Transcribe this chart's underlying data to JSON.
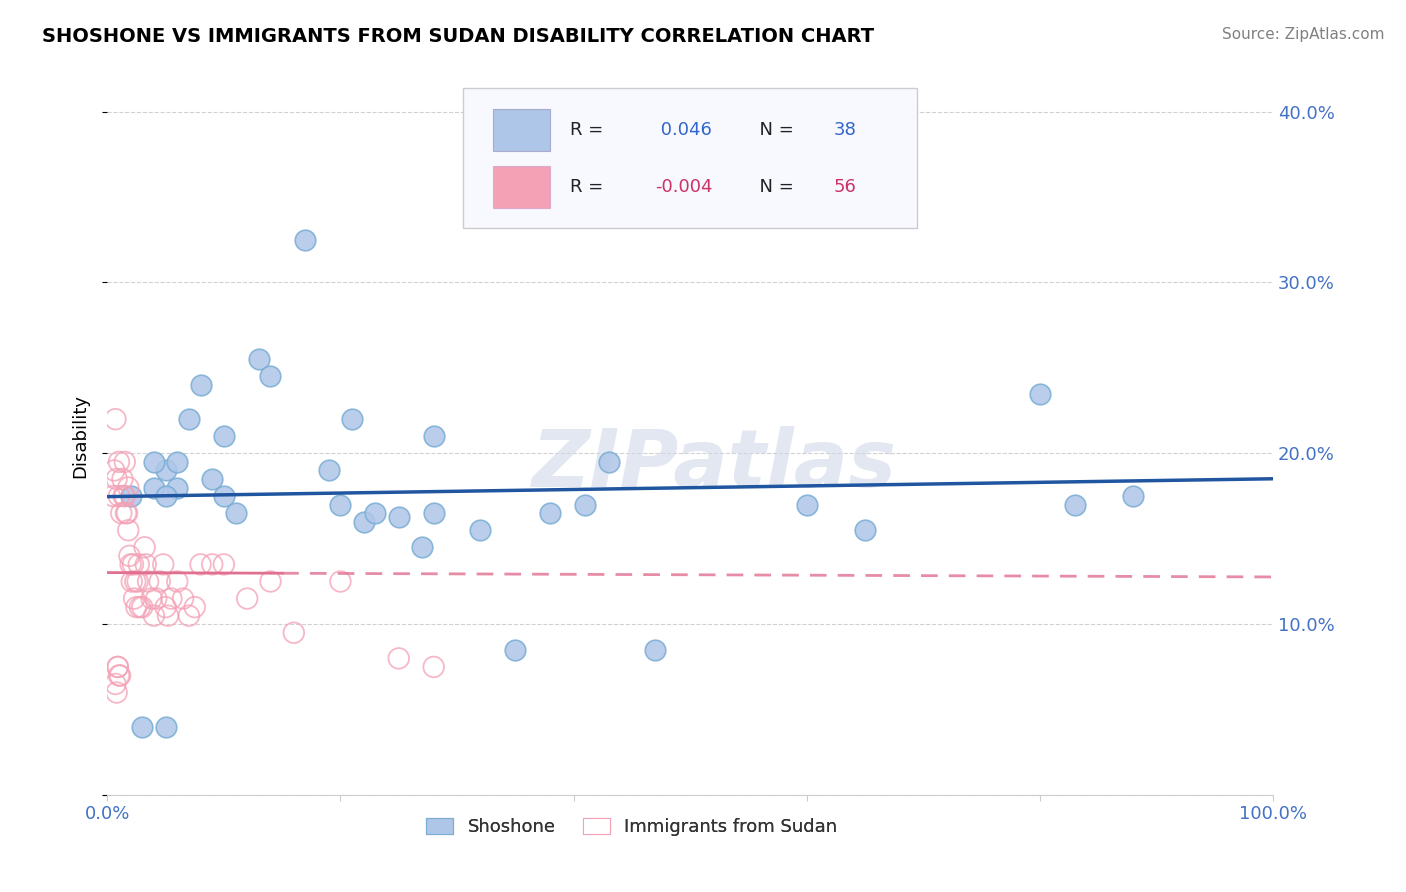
{
  "title": "SHOSHONE VS IMMIGRANTS FROM SUDAN DISABILITY CORRELATION CHART",
  "source": "Source: ZipAtlas.com",
  "ylabel": "Disability",
  "xlim": [
    0,
    1.0
  ],
  "ylim": [
    0,
    0.42
  ],
  "xticks": [
    0.0,
    0.2,
    0.4,
    0.6,
    0.8,
    1.0
  ],
  "xticklabels": [
    "0.0%",
    "",
    "",
    "",
    "",
    "100.0%"
  ],
  "yticks": [
    0.0,
    0.1,
    0.2,
    0.3,
    0.4
  ],
  "yticklabels": [
    "",
    "10.0%",
    "20.0%",
    "30.0%",
    "40.0%"
  ],
  "grid_color": "#cccccc",
  "background_color": "#ffffff",
  "watermark": "ZIPatlas",
  "blue_R": 0.046,
  "blue_N": 38,
  "pink_R": -0.004,
  "pink_N": 56,
  "blue_fill_color": "#aec6e8",
  "blue_edge_color": "#7aadd4",
  "pink_edge_color": "#f4a0b5",
  "blue_line_color": "#2055a0",
  "pink_line_color": "#e07090",
  "blue_legend": "Shoshone",
  "pink_legend": "Immigrants from Sudan",
  "blue_x": [
    0.02,
    0.04,
    0.05,
    0.06,
    0.07,
    0.08,
    0.09,
    0.1,
    0.11,
    0.13,
    0.14,
    0.17,
    0.19,
    0.2,
    0.21,
    0.22,
    0.23,
    0.25,
    0.27,
    0.28,
    0.32,
    0.35,
    0.38,
    0.41,
    0.43,
    0.47,
    0.6,
    0.65,
    0.8,
    0.83,
    0.88,
    0.03,
    0.05,
    0.06,
    0.1,
    0.05,
    0.04,
    0.28
  ],
  "blue_y": [
    0.175,
    0.18,
    0.19,
    0.18,
    0.22,
    0.24,
    0.185,
    0.175,
    0.165,
    0.255,
    0.245,
    0.325,
    0.19,
    0.17,
    0.22,
    0.16,
    0.165,
    0.163,
    0.145,
    0.21,
    0.155,
    0.085,
    0.165,
    0.17,
    0.195,
    0.085,
    0.17,
    0.155,
    0.235,
    0.17,
    0.175,
    0.04,
    0.04,
    0.195,
    0.21,
    0.175,
    0.195,
    0.165
  ],
  "pink_x": [
    0.005,
    0.006,
    0.007,
    0.008,
    0.009,
    0.01,
    0.01,
    0.011,
    0.012,
    0.013,
    0.014,
    0.015,
    0.015,
    0.016,
    0.017,
    0.018,
    0.018,
    0.019,
    0.02,
    0.021,
    0.022,
    0.023,
    0.024,
    0.025,
    0.026,
    0.027,
    0.028,
    0.03,
    0.032,
    0.033,
    0.035,
    0.038,
    0.04,
    0.042,
    0.045,
    0.048,
    0.05,
    0.052,
    0.055,
    0.06,
    0.065,
    0.07,
    0.075,
    0.08,
    0.09,
    0.1,
    0.12,
    0.14,
    0.16,
    0.2,
    0.25,
    0.28,
    0.007,
    0.008,
    0.009,
    0.01
  ],
  "pink_y": [
    0.175,
    0.19,
    0.22,
    0.185,
    0.075,
    0.195,
    0.175,
    0.07,
    0.165,
    0.185,
    0.175,
    0.175,
    0.195,
    0.165,
    0.165,
    0.18,
    0.155,
    0.14,
    0.135,
    0.125,
    0.135,
    0.115,
    0.125,
    0.11,
    0.125,
    0.135,
    0.11,
    0.11,
    0.145,
    0.135,
    0.125,
    0.115,
    0.105,
    0.115,
    0.125,
    0.135,
    0.11,
    0.105,
    0.115,
    0.125,
    0.115,
    0.105,
    0.11,
    0.135,
    0.135,
    0.135,
    0.115,
    0.125,
    0.095,
    0.125,
    0.08,
    0.075,
    0.065,
    0.06,
    0.075,
    0.07
  ]
}
